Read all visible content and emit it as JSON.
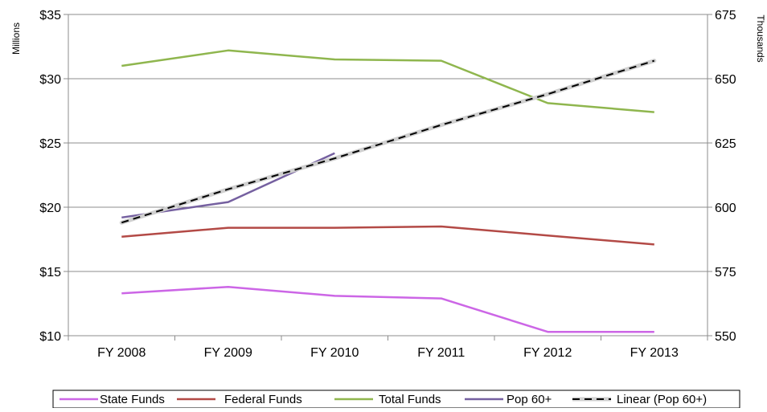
{
  "chart_data": {
    "type": "line",
    "categories": [
      "FY 2008",
      "FY 2009",
      "FY 2010",
      "FY 2011",
      "FY 2012",
      "FY 2013"
    ],
    "left_axis": {
      "label": "Millions",
      "range": [
        10,
        35
      ],
      "ticks": [
        10,
        15,
        20,
        25,
        30,
        35
      ],
      "tick_labels": [
        "$10",
        "$15",
        "$20",
        "$25",
        "$30",
        "$35"
      ]
    },
    "right_axis": {
      "label": "Thousands",
      "range": [
        550,
        675
      ],
      "ticks": [
        550,
        575,
        600,
        625,
        650,
        675
      ],
      "tick_labels": [
        "550",
        "575",
        "600",
        "625",
        "650",
        "675"
      ]
    },
    "grid": "horizontal",
    "legend_position": "bottom",
    "series": [
      {
        "name": "State Funds",
        "axis": "left",
        "color": "#cc66e6",
        "dashed": false,
        "values": [
          13.3,
          13.8,
          13.1,
          12.9,
          10.3,
          10.3
        ]
      },
      {
        "name": "Federal Funds",
        "axis": "left",
        "color": "#b34a46",
        "dashed": false,
        "values": [
          17.7,
          18.4,
          18.4,
          18.5,
          17.8,
          17.1
        ]
      },
      {
        "name": "Total Funds",
        "axis": "left",
        "color": "#8fb64e",
        "dashed": false,
        "values": [
          31.0,
          32.2,
          31.5,
          31.4,
          28.1,
          27.4
        ]
      },
      {
        "name": "Pop 60+",
        "axis": "right",
        "color": "#7560a0",
        "dashed": false,
        "values": [
          596,
          602,
          621,
          null,
          null,
          null
        ]
      },
      {
        "name": "Linear (Pop 60+)",
        "axis": "right",
        "color": "#000000",
        "dashed": true,
        "values": [
          594,
          607,
          619,
          632,
          644,
          657
        ]
      }
    ]
  }
}
